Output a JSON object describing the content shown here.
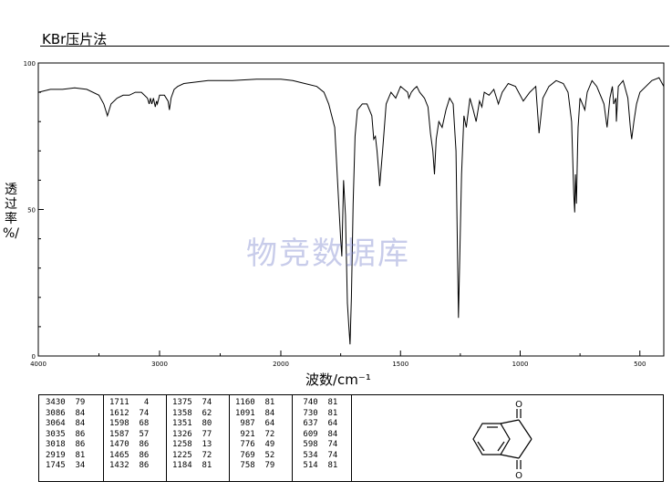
{
  "header": {
    "title": "KBr压片法"
  },
  "axis": {
    "ylabel_chars": [
      "透",
      "过",
      "率",
      "%/"
    ],
    "xlabel": "波数/cm⁻¹"
  },
  "watermark": "物竞数据库",
  "chart_data": {
    "type": "line",
    "xlabel": "波数/cm⁻¹",
    "ylabel": "透过率%/",
    "xlim": [
      4000,
      400
    ],
    "ylim": [
      0,
      100
    ],
    "x_ticks": [
      "4000",
      "3000",
      "2000",
      "1500",
      "1000",
      "500"
    ],
    "y_ticks": [
      "0",
      "50",
      "100"
    ],
    "grid": false,
    "series": [
      {
        "x": [
          4000,
          3900,
          3800,
          3700,
          3600,
          3500,
          3460,
          3430,
          3400,
          3350,
          3300,
          3250,
          3200,
          3150,
          3100,
          3086,
          3075,
          3064,
          3050,
          3035,
          3025,
          3018,
          3000,
          2960,
          2930,
          2919,
          2905,
          2880,
          2850,
          2800,
          2600,
          2400,
          2200,
          2000,
          1950,
          1900,
          1850,
          1820,
          1800,
          1775,
          1760,
          1750,
          1745,
          1738,
          1730,
          1722,
          1716,
          1711,
          1705,
          1698,
          1690,
          1680,
          1660,
          1640,
          1620,
          1612,
          1605,
          1598,
          1590,
          1587,
          1575,
          1560,
          1540,
          1520,
          1500,
          1485,
          1470,
          1465,
          1455,
          1445,
          1432,
          1420,
          1400,
          1385,
          1375,
          1365,
          1358,
          1351,
          1340,
          1326,
          1310,
          1295,
          1280,
          1268,
          1258,
          1245,
          1235,
          1225,
          1210,
          1196,
          1184,
          1170,
          1160,
          1150,
          1130,
          1110,
          1091,
          1075,
          1050,
          1020,
          987,
          960,
          935,
          921,
          905,
          880,
          850,
          820,
          800,
          785,
          776,
          772,
          769,
          765,
          760,
          758,
          750,
          740,
          730,
          720,
          700,
          680,
          660,
          650,
          637,
          625,
          615,
          609,
          600,
          598,
          590,
          570,
          550,
          540,
          534,
          525,
          514,
          500,
          450,
          420,
          400
        ],
        "y": [
          90,
          91,
          91,
          91.5,
          91,
          89,
          86,
          82,
          86,
          88,
          89,
          89,
          90,
          90,
          88,
          86,
          88,
          86,
          88,
          85,
          87,
          86,
          89,
          89,
          87,
          84,
          88,
          91,
          92,
          93,
          94,
          94,
          94.5,
          94.5,
          94,
          93,
          92,
          90,
          86,
          78,
          55,
          40,
          34,
          60,
          48,
          18,
          10,
          4,
          20,
          52,
          75,
          84,
          86,
          86,
          82,
          74,
          75,
          70,
          62,
          58,
          70,
          86,
          90,
          88,
          92,
          91,
          90,
          88,
          90,
          91,
          92,
          90,
          88,
          85,
          76,
          70,
          62,
          74,
          80,
          78,
          84,
          88,
          86,
          70,
          13,
          62,
          82,
          78,
          88,
          84,
          80,
          87,
          85,
          90,
          89,
          91,
          86,
          90,
          93,
          92,
          87,
          90,
          92,
          76,
          88,
          92,
          94,
          93,
          90,
          80,
          55,
          49,
          62,
          52,
          72,
          78,
          88,
          86,
          84,
          90,
          94,
          92,
          88,
          86,
          78,
          88,
          92,
          86,
          88,
          80,
          92,
          94,
          88,
          78,
          74,
          80,
          86,
          90,
          94,
          95,
          92
        ]
      }
    ],
    "peak_table": [
      [
        "3430  79",
        "3086  84",
        "3064  84",
        "3035  86",
        "3018  86",
        "2919  81",
        "1745  34"
      ],
      [
        "1711   4",
        "1612  74",
        "1598  68",
        "1587  57",
        "1470  86",
        "1465  86",
        "1432  86"
      ],
      [
        "1375  74",
        "1358  62",
        "1351  80",
        "1326  77",
        "1258  13",
        "1225  72",
        "1184  81"
      ],
      [
        "1160  81",
        "1091  84",
        " 987  64",
        " 921  72",
        " 776  49",
        " 769  52",
        " 758  79"
      ],
      [
        " 740  81",
        " 730  81",
        " 637  64",
        " 609  84",
        " 598  74",
        " 534  74",
        " 514  81"
      ]
    ]
  },
  "structure": {
    "o_label": "O"
  },
  "colors": {
    "line": "#000000",
    "watermark": "#6e78c8"
  }
}
